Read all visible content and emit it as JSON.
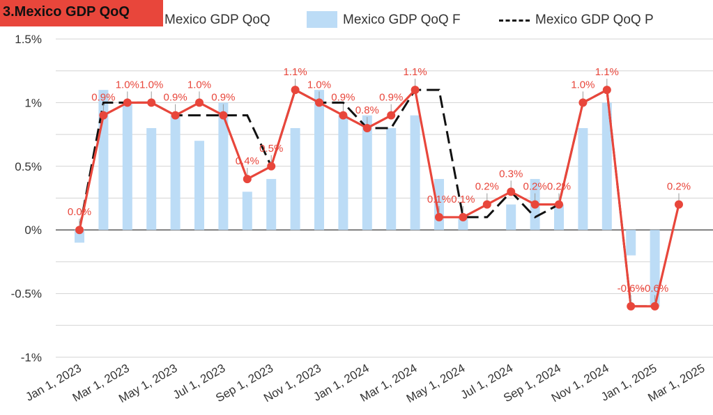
{
  "chart_data": {
    "type": "line",
    "title": "3.Mexico GDP QoQ",
    "x": [
      "Jan 1, 2023",
      "Feb 1, 2023",
      "Mar 1, 2023",
      "Apr 1, 2023",
      "May 1, 2023",
      "Jun 1, 2023",
      "Jul 1, 2023",
      "Aug 1, 2023",
      "Sep 1, 2023",
      "Oct 1, 2023",
      "Nov 1, 2023",
      "Dec 1, 2023",
      "Jan 1, 2024",
      "Feb 1, 2024",
      "Mar 1, 2024",
      "Apr 1, 2024",
      "May 1, 2024",
      "Jun 1, 2024",
      "Jul 1, 2024",
      "Aug 1, 2024",
      "Sep 1, 2024",
      "Oct 1, 2024",
      "Nov 1, 2024",
      "Dec 1, 2024",
      "Jan 1, 2025",
      "Feb 1, 2025"
    ],
    "x_tick_labels": [
      "Jan 1, 2023",
      "Mar 1, 2023",
      "May 1, 2023",
      "Jul 1, 2023",
      "Sep 1, 2023",
      "Nov 1, 2023",
      "Jan 1, 2024",
      "Mar 1, 2024",
      "May 1, 2024",
      "Jul 1, 2024",
      "Sep 1, 2024",
      "Nov 1, 2024",
      "Jan 1, 2025",
      "Mar 1, 2025"
    ],
    "y_ticks": [
      1.5,
      1,
      0.5,
      0,
      -0.5,
      -1
    ],
    "y_tick_labels": [
      "1.5%",
      "1%",
      "0.5%",
      "0%",
      "-0.5%",
      "-1%"
    ],
    "ylim": [
      -1,
      1.5
    ],
    "grid": true,
    "legend_position": "top",
    "series": [
      {
        "name": "Mexico GDP QoQ",
        "kind": "line-markers",
        "color": "#e8463b",
        "values": [
          0.0,
          0.9,
          1.0,
          1.0,
          0.9,
          1.0,
          0.9,
          0.4,
          0.5,
          1.1,
          1.0,
          0.9,
          0.8,
          0.9,
          1.1,
          0.1,
          0.1,
          0.2,
          0.3,
          0.2,
          0.2,
          1.0,
          1.1,
          -0.6,
          -0.6,
          0.2
        ],
        "labels": [
          "0.0%",
          "0.9%",
          "1.0%",
          "1.0%",
          "0.9%",
          "1.0%",
          "0.9%",
          "0.4%",
          "0.5%",
          "1.1%",
          "1.0%",
          "0.9%",
          "0.8%",
          "0.9%",
          "1.1%",
          "0.1%",
          "0.1%",
          "0.2%",
          "0.3%",
          "0.2%",
          "0.2%",
          "1.0%",
          "1.1%",
          "-0.6%",
          "-0.6%",
          "0.2%"
        ]
      },
      {
        "name": "Mexico GDP QoQ F",
        "kind": "bar",
        "color": "#bcdcf6",
        "values": [
          -0.1,
          1.1,
          1.0,
          0.8,
          0.9,
          0.7,
          1.0,
          0.3,
          0.4,
          0.8,
          1.1,
          0.9,
          0.9,
          0.8,
          0.9,
          0.4,
          0.1,
          null,
          0.2,
          0.4,
          0.2,
          0.8,
          1.0,
          -0.2,
          -0.6,
          null
        ]
      },
      {
        "name": "Mexico GDP QoQ P",
        "kind": "dashed-line",
        "color": "#111111",
        "values": [
          0.0,
          1.0,
          1.0,
          1.0,
          0.9,
          0.9,
          0.9,
          0.9,
          0.5,
          1.1,
          1.0,
          1.0,
          0.8,
          0.8,
          1.1,
          1.1,
          0.1,
          0.1,
          0.3,
          0.1,
          0.2,
          1.0,
          1.1,
          -0.6,
          -0.6,
          null
        ]
      }
    ]
  }
}
